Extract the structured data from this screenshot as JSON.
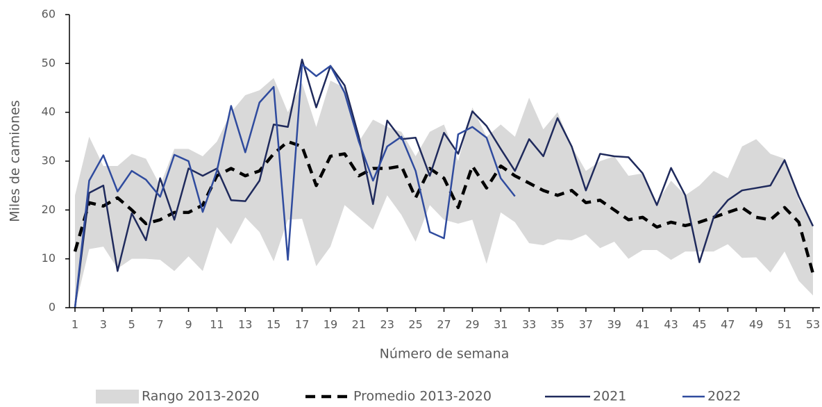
{
  "chart_data": {
    "type": "line",
    "x_label": "Número de semana",
    "y_label": "Miles de camiones",
    "x": [
      1,
      2,
      3,
      4,
      5,
      6,
      7,
      8,
      9,
      10,
      11,
      12,
      13,
      14,
      15,
      16,
      17,
      18,
      19,
      20,
      21,
      22,
      23,
      24,
      25,
      26,
      27,
      28,
      29,
      30,
      31,
      32,
      33,
      34,
      35,
      36,
      37,
      38,
      39,
      40,
      41,
      42,
      43,
      44,
      45,
      46,
      47,
      48,
      49,
      50,
      51,
      52,
      53
    ],
    "xlim": [
      1,
      53
    ],
    "xticks": [
      1,
      3,
      5,
      7,
      9,
      11,
      13,
      15,
      17,
      19,
      21,
      23,
      25,
      27,
      29,
      31,
      33,
      35,
      37,
      39,
      41,
      43,
      45,
      47,
      49,
      51,
      53
    ],
    "ylim": [
      0,
      60
    ],
    "yticks": [
      0,
      10,
      20,
      30,
      40,
      50,
      60
    ],
    "series": [
      {
        "name": "Rango 2013-2020",
        "type": "range",
        "color": "#d9d9d9",
        "low": [
          0,
          12,
          12.5,
          8,
          10,
          10,
          9.8,
          7.5,
          10.5,
          7.5,
          16.5,
          13,
          18.5,
          15.5,
          9.5,
          18,
          18.2,
          8.5,
          12.5,
          21,
          18.5,
          16,
          23,
          19,
          13.5,
          21,
          18,
          17.2,
          18,
          9,
          19.5,
          17.5,
          13.2,
          12.8,
          14,
          13.8,
          15,
          12.2,
          13.5,
          10,
          11.8,
          11.8,
          9.8,
          11.5,
          11.5,
          11.5,
          13,
          10.2,
          10.3,
          7.2,
          11.5,
          5.5,
          2.5
        ],
        "high": [
          23,
          35,
          29,
          29,
          31.5,
          30.5,
          25,
          32.5,
          32.5,
          31,
          34,
          40,
          43.5,
          44.5,
          47,
          40,
          46,
          37,
          46.5,
          45,
          34,
          38.5,
          37,
          36,
          31,
          36,
          37.5,
          30,
          41,
          35,
          37.5,
          35,
          43,
          36.5,
          40,
          33,
          28,
          30,
          31,
          27,
          27.5,
          21.5,
          26,
          23,
          25,
          28,
          26.5,
          33,
          34.5,
          31.5,
          30.5,
          22,
          17
        ]
      },
      {
        "name": "Promedio 2013-2020",
        "type": "dashed",
        "color": "#000000",
        "values": [
          11.5,
          21.5,
          20.8,
          22.5,
          20,
          17.2,
          18,
          19.5,
          19.5,
          21,
          27,
          28.5,
          27,
          28,
          31.5,
          34,
          33,
          25,
          31,
          31.5,
          27,
          28.5,
          28.5,
          29,
          22.5,
          28.5,
          26.5,
          20.5,
          29,
          24.5,
          29,
          27,
          25.5,
          24,
          23,
          24,
          21.5,
          22,
          20,
          18,
          18.5,
          16.5,
          17.5,
          16.8,
          17.5,
          18.5,
          19.5,
          20.5,
          18.5,
          18,
          20.5,
          17.5,
          7
        ]
      },
      {
        "name": "2021",
        "color": "#1f2a5c",
        "values": [
          0,
          23.5,
          25,
          7.5,
          19.3,
          13.8,
          26.5,
          18,
          28.5,
          27,
          28.5,
          22,
          21.8,
          26,
          37.5,
          37,
          50.8,
          41,
          49.5,
          45.5,
          35,
          21.2,
          38.3,
          34.5,
          34.8,
          27,
          35.8,
          31.5,
          40.2,
          37.2,
          32.5,
          28,
          34.5,
          31,
          38.8,
          33,
          24,
          31.5,
          31,
          30.8,
          27.5,
          21,
          28.6,
          23,
          9.3,
          18.5,
          22,
          24,
          24.5,
          25,
          30.2,
          22.8,
          16.7
        ]
      },
      {
        "name": "2022",
        "color": "#2f4b9e",
        "values": [
          0,
          26,
          31.2,
          23.8,
          28,
          26.2,
          22.7,
          31.3,
          30,
          19.6,
          28,
          41.3,
          31.8,
          42,
          45.2,
          9.8,
          49.8,
          47.4,
          49.5,
          44,
          34,
          26,
          33,
          35,
          28,
          15.5,
          14.2,
          35.5,
          37,
          34.8,
          26.5,
          22.8,
          null,
          null,
          null,
          null,
          null,
          null,
          null,
          null,
          null,
          null,
          null,
          null,
          null,
          null,
          null,
          null,
          null,
          null,
          null,
          null,
          null
        ]
      }
    ]
  }
}
